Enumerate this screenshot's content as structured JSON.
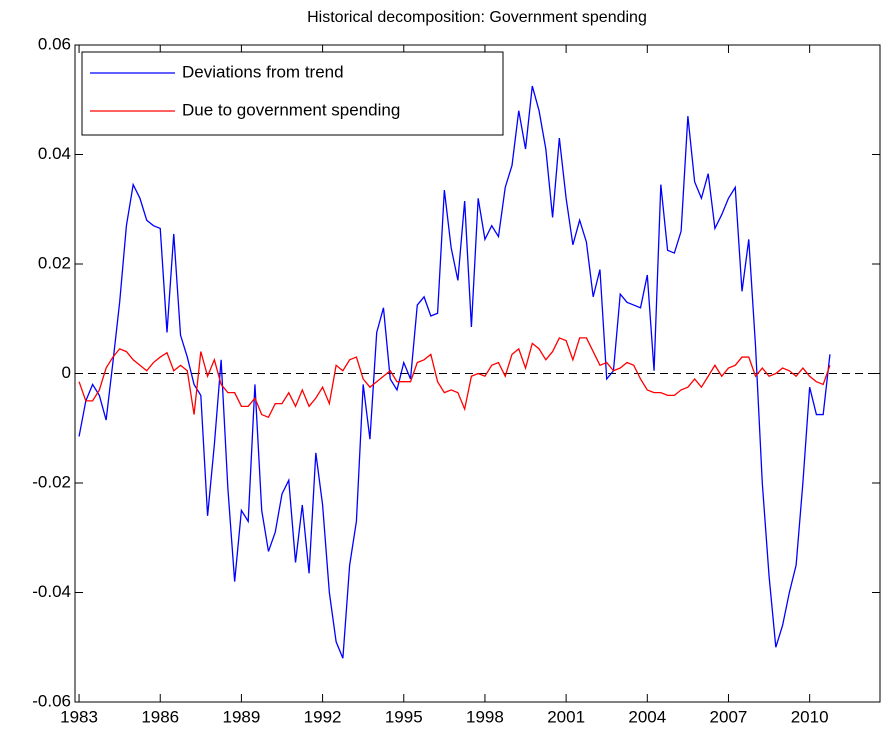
{
  "chart_data": {
    "type": "line",
    "title": "Historical decomposition: Government spending",
    "x": [
      1983,
      1983.25,
      1983.5,
      1983.75,
      1984,
      1984.25,
      1984.5,
      1984.75,
      1985,
      1985.25,
      1985.5,
      1985.75,
      1986,
      1986.25,
      1986.5,
      1986.75,
      1987,
      1987.25,
      1987.5,
      1987.75,
      1988,
      1988.25,
      1988.5,
      1988.75,
      1989,
      1989.25,
      1989.5,
      1989.75,
      1990,
      1990.25,
      1990.5,
      1990.75,
      1991,
      1991.25,
      1991.5,
      1991.75,
      1992,
      1992.25,
      1992.5,
      1992.75,
      1993,
      1993.25,
      1993.5,
      1993.75,
      1994,
      1994.25,
      1994.5,
      1994.75,
      1995,
      1995.25,
      1995.5,
      1995.75,
      1996,
      1996.25,
      1996.5,
      1996.75,
      1997,
      1997.25,
      1997.5,
      1997.75,
      1998,
      1998.25,
      1998.5,
      1998.75,
      1999,
      1999.25,
      1999.5,
      1999.75,
      2000,
      2000.25,
      2000.5,
      2000.75,
      2001,
      2001.25,
      2001.5,
      2001.75,
      2002,
      2002.25,
      2002.5,
      2002.75,
      2003,
      2003.25,
      2003.5,
      2003.75,
      2004,
      2004.25,
      2004.5,
      2004.75,
      2005,
      2005.25,
      2005.5,
      2005.75,
      2006,
      2006.25,
      2006.5,
      2006.75,
      2007,
      2007.25,
      2007.5,
      2007.75,
      2008,
      2008.25,
      2008.5,
      2008.75,
      2009,
      2009.25,
      2009.5,
      2009.75,
      2010,
      2010.25,
      2010.5,
      2010.75
    ],
    "series": [
      {
        "name": "Deviations from trend",
        "color": "#0000ff",
        "values": [
          -0.0115,
          -0.005,
          -0.002,
          -0.004,
          -0.0085,
          0.002,
          0.013,
          0.027,
          0.0345,
          0.032,
          0.028,
          0.027,
          0.0265,
          0.0075,
          0.0255,
          0.007,
          0.003,
          -0.002,
          -0.004,
          -0.026,
          -0.013,
          0.0025,
          -0.021,
          -0.038,
          -0.025,
          -0.027,
          -0.002,
          -0.025,
          -0.0325,
          -0.029,
          -0.022,
          -0.0195,
          -0.0345,
          -0.024,
          -0.0365,
          -0.0145,
          -0.024,
          -0.04,
          -0.049,
          -0.052,
          -0.035,
          -0.027,
          -0.002,
          -0.012,
          0.0075,
          0.012,
          -0.001,
          -0.003,
          0.002,
          -0.001,
          0.0125,
          0.014,
          0.0105,
          0.011,
          0.0335,
          0.023,
          0.017,
          0.0315,
          0.0085,
          0.032,
          0.0245,
          0.027,
          0.025,
          0.034,
          0.038,
          0.048,
          0.041,
          0.0525,
          0.048,
          0.041,
          0.0285,
          0.043,
          0.032,
          0.0235,
          0.028,
          0.024,
          0.014,
          0.019,
          -0.001,
          0.0005,
          0.0145,
          0.013,
          0.0125,
          0.012,
          0.018,
          0.0005,
          0.0345,
          0.0225,
          0.022,
          0.026,
          0.047,
          0.035,
          0.032,
          0.0365,
          0.0265,
          0.029,
          0.032,
          0.034,
          0.015,
          0.0245,
          0.005,
          -0.02,
          -0.037,
          -0.05,
          -0.046,
          -0.04,
          -0.035,
          -0.02,
          -0.0025,
          -0.0075,
          -0.0075,
          0.0035
        ]
      },
      {
        "name": "Due to government spending",
        "color": "#ff0000",
        "values": [
          -0.0015,
          -0.005,
          -0.005,
          -0.003,
          0.001,
          0.003,
          0.0045,
          0.004,
          0.0025,
          0.0015,
          0.0005,
          0.002,
          0.003,
          0.0038,
          0.0005,
          0.0015,
          0.0005,
          -0.0075,
          0.004,
          -0.0005,
          0.0025,
          -0.002,
          -0.0035,
          -0.0035,
          -0.006,
          -0.006,
          -0.0045,
          -0.0075,
          -0.008,
          -0.0055,
          -0.0055,
          -0.0035,
          -0.006,
          -0.003,
          -0.006,
          -0.0045,
          -0.0025,
          -0.0055,
          0.0015,
          0.0005,
          0.0025,
          0.003,
          -0.001,
          -0.0025,
          -0.0015,
          -0.0005,
          0.0005,
          -0.0015,
          -0.0015,
          -0.0015,
          0.002,
          0.0025,
          0.0035,
          -0.0015,
          -0.0035,
          -0.003,
          -0.0035,
          -0.0065,
          -0.0005,
          0,
          -0.0005,
          0.0015,
          0.002,
          -0.0005,
          0.0035,
          0.0045,
          0.001,
          0.0055,
          0.0045,
          0.0025,
          0.004,
          0.0065,
          0.006,
          0.0025,
          0.0065,
          0.0065,
          0.004,
          0.0015,
          0.002,
          0.0005,
          0.001,
          0.002,
          0.0015,
          -0.001,
          -0.003,
          -0.0035,
          -0.0035,
          -0.004,
          -0.004,
          -0.003,
          -0.0025,
          -0.001,
          -0.0025,
          -0.0005,
          0.0015,
          -0.0005,
          0.001,
          0.0015,
          0.003,
          0.003,
          -0.0005,
          0.001,
          -0.0005,
          0,
          0.001,
          0.0005,
          -0.0005,
          0.001,
          -0.0005,
          -0.0015,
          -0.002,
          0.0015
        ]
      }
    ],
    "hline": 0,
    "xlim": [
      1982.85,
      2012.6
    ],
    "xticks": [
      1983,
      1986,
      1989,
      1992,
      1995,
      1998,
      2001,
      2004,
      2007,
      2010
    ],
    "ylim": [
      -0.06,
      0.06
    ],
    "yticks": [
      -0.06,
      -0.04,
      -0.02,
      0,
      0.02,
      0.04,
      0.06
    ],
    "legend": "upper left"
  }
}
